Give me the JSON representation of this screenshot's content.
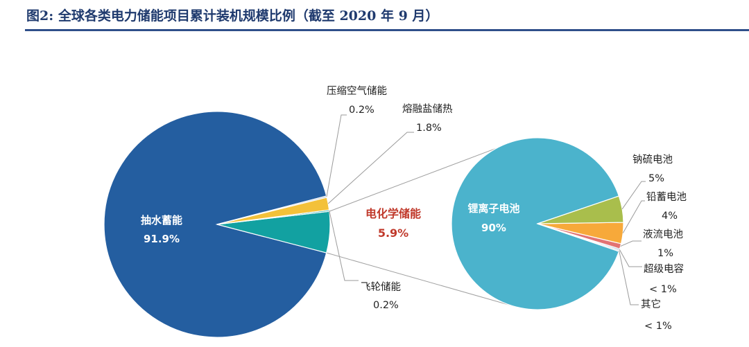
{
  "header": {
    "title": "图2: 全球各类电力储能项目累计装机规模比例（截至 2020 年 9 月）"
  },
  "colors": {
    "pumped_hydro": "#245ea0",
    "flywheel": "#12a1a1",
    "molten_salt": "#f3c13a",
    "compressed_air": "#b9c6d3",
    "electrochemical_connector": "#a0a0a0",
    "lithium": "#4bb3cc",
    "sodium_sulfur": "#a9be4c",
    "lead_acid": "#f7a93a",
    "flow": "#e27373",
    "supercap": "#7aa0c8",
    "other": "#c8d2dc",
    "title": "#1f3a6e"
  },
  "chart_data": [
    {
      "type": "pie",
      "slices": [
        {
          "label": "抽水蓄能",
          "value_label": "91.9%",
          "value": 91.9
        },
        {
          "label": "电化学储能",
          "value_label": "5.9%",
          "value": 5.9
        },
        {
          "label": "飞轮储能",
          "value_label": "0.2%",
          "value": 0.2
        },
        {
          "label": "熔融盐储热",
          "value_label": "1.8%",
          "value": 1.8
        },
        {
          "label": "压缩空气储能",
          "value_label": "0.2%",
          "value": 0.2
        }
      ]
    },
    {
      "type": "pie",
      "slices": [
        {
          "label": "锂离子电池",
          "value_label": "90%",
          "value": 90
        },
        {
          "label": "钠硫电池",
          "value_label": "5%",
          "value": 5
        },
        {
          "label": "铅蓄电池",
          "value_label": "4%",
          "value": 4
        },
        {
          "label": "液流电池",
          "value_label": "1%",
          "value": 1
        },
        {
          "label": "超级电容",
          "value_label": "< 1%",
          "value": 0.25
        },
        {
          "label": "其它",
          "value_label": "< 1%",
          "value": 0.25
        }
      ]
    }
  ]
}
